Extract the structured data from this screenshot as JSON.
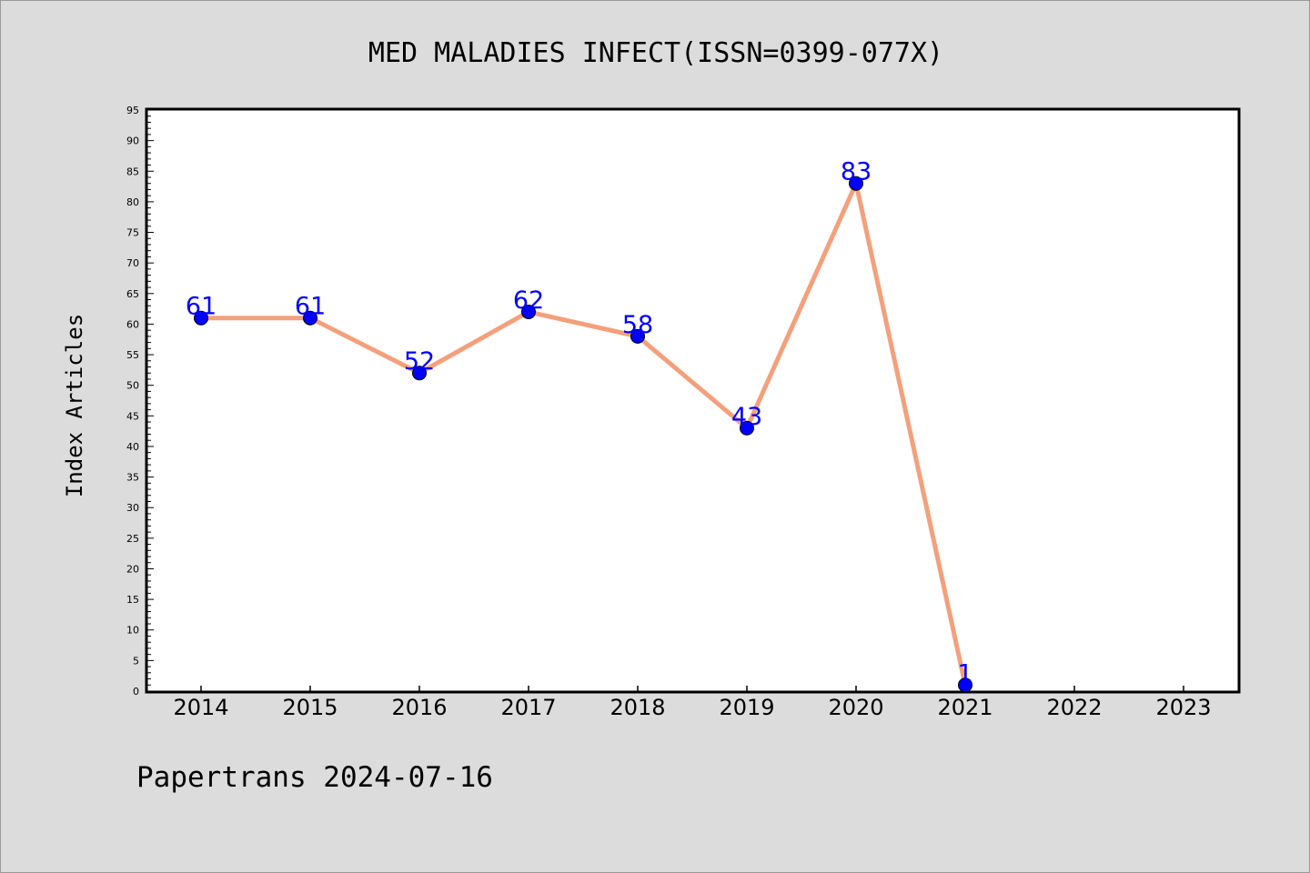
{
  "chart_data": {
    "type": "line",
    "title": "MED MALADIES INFECT(ISSN=0399-077X)",
    "ylabel": "Index Articles",
    "xlabel": "",
    "categories": [
      "2014",
      "2015",
      "2016",
      "2017",
      "2018",
      "2019",
      "2020",
      "2021",
      "2022",
      "2023"
    ],
    "series": [
      {
        "values": [
          61,
          61,
          52,
          62,
          58,
          43,
          83,
          1,
          null,
          null
        ]
      }
    ],
    "ylim": [
      0,
      95
    ],
    "ytick_step": 5,
    "grid": false,
    "colors": {
      "line": "#f4a07c",
      "marker": "#0000ff",
      "label": "#0000ff",
      "background": "#dcdcdc",
      "plot": "#ffffff"
    }
  },
  "footer": "Papertrans 2024-07-16"
}
